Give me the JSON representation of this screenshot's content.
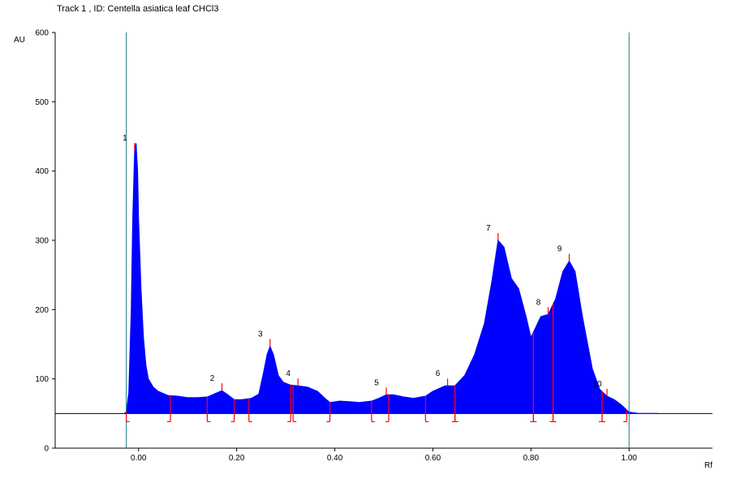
{
  "chart_data": {
    "type": "area",
    "title": "Track  1 , ID: Centella asiatica leaf CHCl3",
    "xlabel": "Rf",
    "ylabel": "AU",
    "xlim": [
      -0.17,
      1.17
    ],
    "ylim": [
      0,
      600
    ],
    "x_ticks": [
      "0.00",
      "0.20",
      "0.40",
      "0.60",
      "0.80",
      "1.00"
    ],
    "x_tick_values": [
      0.0,
      0.2,
      0.4,
      0.6,
      0.8,
      1.0
    ],
    "y_ticks": [
      "0",
      "100",
      "200",
      "300",
      "400",
      "500",
      "600"
    ],
    "y_tick_values": [
      0,
      100,
      200,
      300,
      400,
      500,
      600
    ],
    "baseline": 50,
    "application_line": -0.025,
    "front_line": 1.0,
    "fill_color": "#0000ff",
    "marker_color": "#ff0000",
    "boundary_color": "#1a7a8a",
    "curve": {
      "x": [
        -0.03,
        -0.025,
        -0.02,
        -0.015,
        -0.012,
        -0.008,
        -0.005,
        -0.002,
        0.0,
        0.005,
        0.01,
        0.015,
        0.02,
        0.03,
        0.04,
        0.06,
        0.08,
        0.1,
        0.12,
        0.14,
        0.16,
        0.17,
        0.18,
        0.195,
        0.21,
        0.23,
        0.245,
        0.255,
        0.262,
        0.268,
        0.275,
        0.285,
        0.295,
        0.31,
        0.325,
        0.345,
        0.365,
        0.38,
        0.39,
        0.41,
        0.43,
        0.45,
        0.475,
        0.49,
        0.505,
        0.52,
        0.54,
        0.56,
        0.585,
        0.6,
        0.625,
        0.635,
        0.645,
        0.665,
        0.685,
        0.705,
        0.72,
        0.733,
        0.745,
        0.76,
        0.775,
        0.79,
        0.8,
        0.81,
        0.82,
        0.835,
        0.85,
        0.865,
        0.878,
        0.89,
        0.905,
        0.925,
        0.94,
        0.955,
        0.97,
        0.985,
        1.0,
        1.02,
        1.06
      ],
      "y": [
        50,
        52,
        80,
        200,
        330,
        430,
        440,
        400,
        330,
        230,
        160,
        120,
        100,
        88,
        82,
        76,
        75,
        73,
        73,
        74,
        80,
        83,
        78,
        70,
        70,
        72,
        78,
        110,
        135,
        147,
        135,
        105,
        95,
        91,
        90,
        88,
        82,
        72,
        66,
        68,
        67,
        66,
        68,
        72,
        77,
        77,
        74,
        72,
        75,
        82,
        90,
        90,
        90,
        105,
        135,
        180,
        240,
        300,
        290,
        245,
        230,
        190,
        160,
        175,
        190,
        193,
        215,
        255,
        270,
        255,
        190,
        115,
        85,
        75,
        70,
        62,
        52,
        50,
        50
      ]
    },
    "peaks": [
      {
        "label": "1",
        "start": -0.025,
        "max": -0.008,
        "end": 0.065
      },
      {
        "label": "2",
        "start": 0.14,
        "max": 0.17,
        "end": 0.195
      },
      {
        "label": "3",
        "start": 0.225,
        "max": 0.268,
        "end": 0.31
      },
      {
        "label": "4",
        "start": 0.315,
        "max": 0.325,
        "end": 0.39
      },
      {
        "label": "5",
        "start": 0.475,
        "max": 0.505,
        "end": 0.51
      },
      {
        "label": "6",
        "start": 0.585,
        "max": 0.63,
        "end": 0.645
      },
      {
        "label": "7",
        "start": 0.645,
        "max": 0.733,
        "end": 0.805
      },
      {
        "label": "8",
        "start": 0.805,
        "max": 0.835,
        "end": 0.845
      },
      {
        "label": "9",
        "start": 0.845,
        "max": 0.878,
        "end": 0.945
      },
      {
        "label": "10",
        "start": 0.945,
        "max": 0.955,
        "end": 0.995
      }
    ]
  }
}
